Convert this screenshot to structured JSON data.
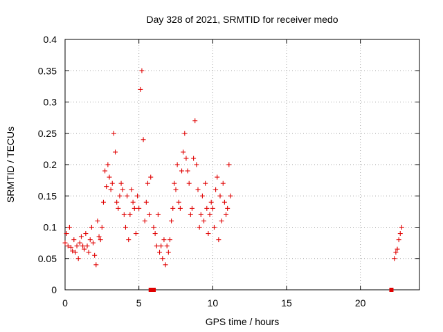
{
  "chart_data": {
    "type": "scatter",
    "title": "Day 328 of 2021, SRMTID for receiver medo",
    "xlabel": "GPS time / hours",
    "ylabel": "SRMTID / TECUs",
    "xlim": [
      0,
      24
    ],
    "ylim": [
      0,
      0.4
    ],
    "x_ticks": [
      "0",
      "5",
      "10",
      "15",
      "20"
    ],
    "y_ticks": [
      "0",
      "0.05",
      "0.1",
      "0.15",
      "0.2",
      "0.25",
      "0.3",
      "0.35",
      "0.4"
    ],
    "grid": true,
    "marker": "plus",
    "color": "#e00000",
    "series": [
      {
        "name": "SRMTID",
        "x": [
          0.0,
          0.1,
          0.2,
          0.3,
          0.4,
          0.5,
          0.6,
          0.7,
          0.8,
          0.9,
          1.0,
          1.1,
          1.2,
          1.3,
          1.4,
          1.5,
          1.6,
          1.7,
          1.8,
          1.9,
          2.0,
          2.1,
          2.2,
          2.3,
          2.4,
          2.5,
          2.6,
          2.7,
          2.8,
          2.9,
          3.0,
          3.1,
          3.2,
          3.3,
          3.4,
          3.5,
          3.6,
          3.7,
          3.8,
          3.9,
          4.0,
          4.1,
          4.2,
          4.3,
          4.4,
          4.5,
          4.6,
          4.7,
          4.8,
          4.9,
          5.0,
          5.1,
          5.2,
          5.3,
          5.4,
          5.5,
          5.6,
          5.7,
          5.8,
          6.0,
          6.1,
          6.2,
          6.3,
          6.4,
          6.5,
          6.6,
          6.7,
          6.8,
          6.9,
          7.0,
          7.1,
          7.2,
          7.3,
          7.4,
          7.5,
          7.6,
          7.7,
          7.8,
          7.9,
          8.0,
          8.1,
          8.2,
          8.3,
          8.4,
          8.5,
          8.6,
          8.7,
          8.8,
          8.9,
          9.0,
          9.1,
          9.2,
          9.3,
          9.4,
          9.5,
          9.6,
          9.7,
          9.8,
          9.9,
          10.0,
          10.1,
          10.2,
          10.3,
          10.4,
          10.5,
          10.6,
          10.7,
          10.8,
          10.9,
          11.0,
          11.1,
          11.2,
          22.3,
          22.4,
          22.5,
          22.6,
          22.7,
          22.8
        ],
        "y": [
          0.075,
          0.09,
          0.07,
          0.1,
          0.068,
          0.062,
          0.08,
          0.06,
          0.07,
          0.05,
          0.075,
          0.085,
          0.07,
          0.065,
          0.09,
          0.07,
          0.06,
          0.08,
          0.1,
          0.075,
          0.055,
          0.04,
          0.11,
          0.085,
          0.08,
          0.1,
          0.14,
          0.19,
          0.165,
          0.2,
          0.18,
          0.16,
          0.17,
          0.25,
          0.22,
          0.14,
          0.13,
          0.15,
          0.17,
          0.16,
          0.12,
          0.1,
          0.15,
          0.08,
          0.12,
          0.16,
          0.14,
          0.13,
          0.09,
          0.15,
          0.13,
          0.32,
          0.35,
          0.24,
          0.11,
          0.14,
          0.17,
          0.12,
          0.18,
          0.1,
          0.09,
          0.07,
          0.12,
          0.06,
          0.07,
          0.05,
          0.08,
          0.04,
          0.07,
          0.06,
          0.08,
          0.11,
          0.13,
          0.17,
          0.16,
          0.2,
          0.14,
          0.13,
          0.19,
          0.22,
          0.25,
          0.21,
          0.19,
          0.17,
          0.12,
          0.13,
          0.21,
          0.27,
          0.2,
          0.16,
          0.1,
          0.12,
          0.15,
          0.11,
          0.17,
          0.13,
          0.09,
          0.12,
          0.14,
          0.13,
          0.1,
          0.16,
          0.18,
          0.08,
          0.15,
          0.11,
          0.17,
          0.14,
          0.12,
          0.13,
          0.2,
          0.15,
          0.05,
          0.06,
          0.065,
          0.08,
          0.09,
          0.1
        ],
        "zero_markers_x": [
          5.8,
          6.0,
          22.1
        ]
      }
    ]
  }
}
